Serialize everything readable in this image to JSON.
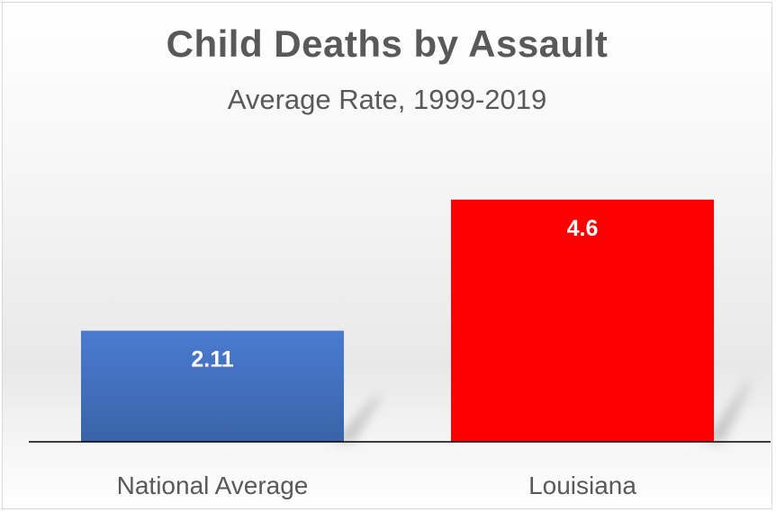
{
  "chart_data": {
    "type": "bar",
    "title": "Child Deaths by Assault",
    "subtitle": "Average Rate, 1999-2019",
    "categories": [
      "National Average",
      "Louisiana"
    ],
    "values": [
      2.11,
      4.6
    ],
    "value_labels": [
      "2.11",
      "4.6"
    ],
    "bar_colors": [
      "#4472c4",
      "#ff0000"
    ],
    "ylim": [
      0,
      5.52
    ],
    "grid": false,
    "legend": "none"
  }
}
